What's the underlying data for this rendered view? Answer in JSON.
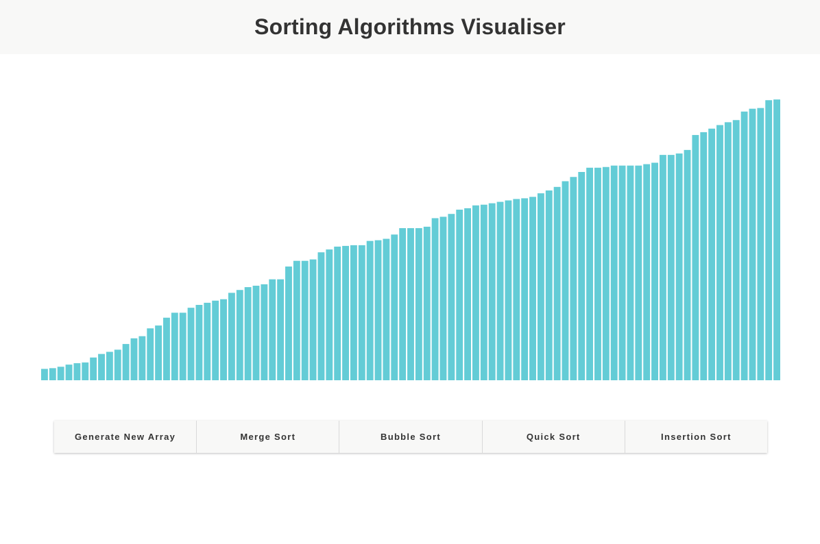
{
  "header": {
    "title": "Sorting Algorithms Visualiser"
  },
  "colors": {
    "bar": "#63ccd6",
    "header_bg": "#f8f8f7",
    "button_bg": "#f8f8f7",
    "text": "#333333"
  },
  "controls": {
    "generate_label": "Generate New Array",
    "merge_label": "Merge Sort",
    "bubble_label": "Bubble Sort",
    "quick_label": "Quick Sort",
    "insertion_label": "Insertion Sort"
  },
  "chart_data": {
    "type": "bar",
    "max_value": 400,
    "values": [
      16,
      17,
      19,
      22,
      24,
      25,
      32,
      37,
      40,
      43,
      51,
      59,
      62,
      73,
      77,
      88,
      95,
      95,
      102,
      106,
      109,
      112,
      114,
      123,
      127,
      131,
      133,
      135,
      142,
      142,
      160,
      168,
      168,
      170,
      180,
      184,
      188,
      189,
      190,
      190,
      196,
      197,
      199,
      205,
      214,
      214,
      214,
      216,
      228,
      230,
      234,
      240,
      242,
      246,
      247,
      249,
      251,
      253,
      255,
      256,
      258,
      263,
      267,
      272,
      280,
      286,
      293,
      299,
      299,
      300,
      302,
      302,
      302,
      302,
      304,
      306,
      317,
      317,
      319,
      324,
      345,
      349,
      354,
      359,
      363,
      366,
      378,
      382,
      383,
      394,
      395
    ]
  }
}
